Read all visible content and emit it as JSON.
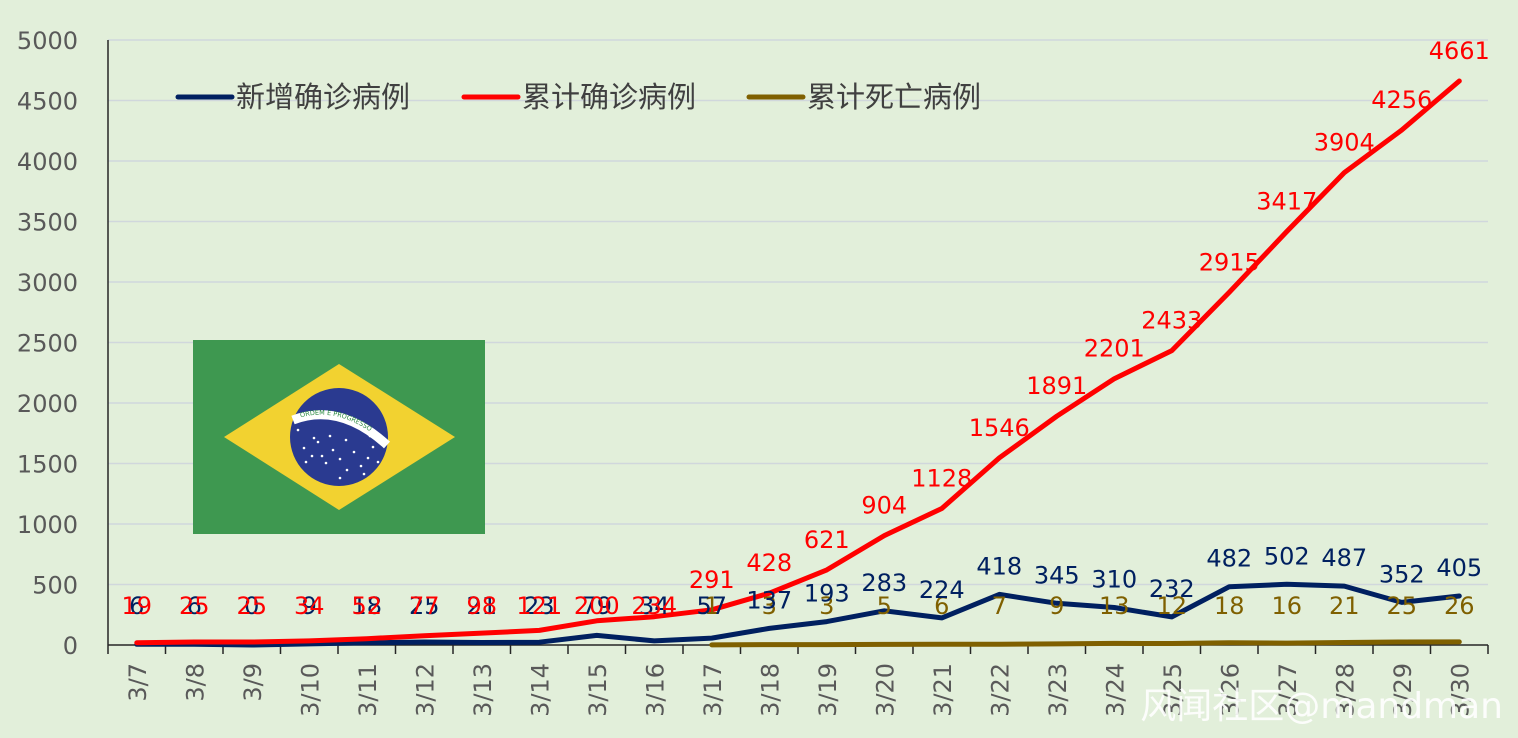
{
  "chart_data": {
    "type": "line",
    "title": "",
    "xlabel": "",
    "ylabel": "",
    "ylim": [
      0,
      5000
    ],
    "yticks": [
      0,
      500,
      1000,
      1500,
      2000,
      2500,
      3000,
      3500,
      4000,
      4500,
      5000
    ],
    "grid": true,
    "legend_position": "top",
    "categories": [
      "3/7",
      "3/8",
      "3/9",
      "3/10",
      "3/11",
      "3/12",
      "3/13",
      "3/14",
      "3/15",
      "3/16",
      "3/17",
      "3/18",
      "3/19",
      "3/20",
      "3/21",
      "3/22",
      "3/23",
      "3/24",
      "3/25",
      "3/26",
      "3/27",
      "3/28",
      "3/29",
      "3/30"
    ],
    "series": [
      {
        "name": "新增确诊病例",
        "color": "#002060",
        "values": [
          6,
          6,
          0,
          9,
          18,
          25,
          21,
          23,
          79,
          34,
          57,
          137,
          193,
          283,
          224,
          418,
          345,
          310,
          232,
          482,
          502,
          487,
          352,
          405
        ]
      },
      {
        "name": "累计确诊病例",
        "color": "#ff0000",
        "values": [
          19,
          25,
          25,
          34,
          52,
          77,
          98,
          121,
          200,
          234,
          291,
          428,
          621,
          904,
          1128,
          1546,
          1891,
          2201,
          2433,
          2915,
          3417,
          3904,
          4256,
          4661
        ]
      },
      {
        "name": "累计死亡病例",
        "color": "#7f6000",
        "values": [
          null,
          null,
          null,
          null,
          null,
          null,
          null,
          null,
          null,
          null,
          1,
          3,
          3,
          5,
          6,
          7,
          9,
          13,
          12,
          18,
          16,
          21,
          25,
          26
        ]
      }
    ]
  },
  "flag": {
    "name": "brazil-flag",
    "motto": "ORDEM E PROGRESSO",
    "colors": {
      "green": "#3e9850",
      "yellow": "#f2d230",
      "blue": "#2a3a90",
      "white": "#ffffff"
    }
  },
  "watermark": "风闻社区@mandman"
}
